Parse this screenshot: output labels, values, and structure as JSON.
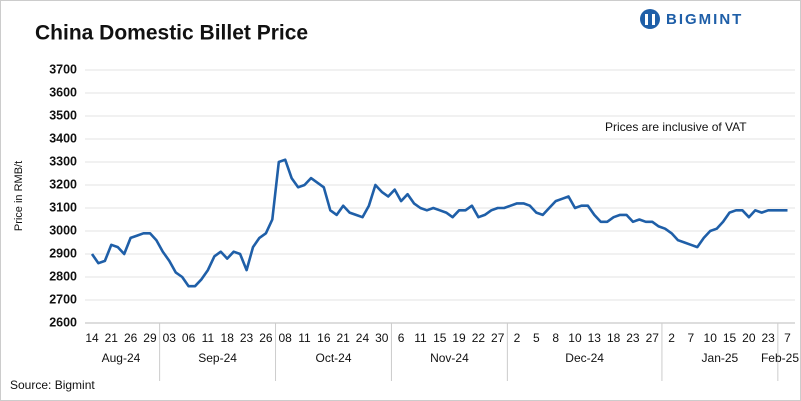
{
  "chart_data": {
    "type": "line",
    "title": "China Domestic Billet Price",
    "brand": "BIGMINT",
    "ylabel": "Price in RMB/t",
    "annotation": "Prices are inclusive of VAT",
    "source": "Source: Bigmint",
    "months": [
      "Aug-24",
      "Sep-24",
      "Oct-24",
      "Nov-24",
      "Dec-24",
      "Jan-25",
      "Feb-25"
    ],
    "categories": [
      "14",
      null,
      null,
      "21",
      null,
      null,
      "26",
      null,
      null,
      "29",
      null,
      null,
      "03",
      null,
      null,
      "06",
      null,
      null,
      "11",
      null,
      null,
      "18",
      null,
      null,
      "23",
      null,
      null,
      "26",
      null,
      null,
      "08",
      null,
      null,
      "11",
      null,
      null,
      "16",
      null,
      null,
      "21",
      null,
      null,
      "24",
      null,
      null,
      "30",
      null,
      null,
      "6",
      null,
      null,
      "11",
      null,
      null,
      "15",
      null,
      null,
      "19",
      null,
      null,
      "22",
      null,
      null,
      "27",
      null,
      null,
      "2",
      null,
      null,
      "5",
      null,
      null,
      "8",
      null,
      null,
      "10",
      null,
      null,
      "13",
      null,
      null,
      "18",
      null,
      null,
      "23",
      null,
      null,
      "27",
      null,
      null,
      "2",
      null,
      null,
      "7",
      null,
      null,
      "10",
      null,
      null,
      "15",
      null,
      null,
      "20",
      null,
      null,
      "23",
      null,
      null,
      "7"
    ],
    "series": [
      {
        "name": "Billet",
        "color": "#1f5fa8",
        "values": [
          2900,
          2860,
          2870,
          2940,
          2930,
          2900,
          2970,
          2980,
          2990,
          2990,
          2960,
          2910,
          2870,
          2820,
          2800,
          2760,
          2760,
          2790,
          2830,
          2890,
          2910,
          2880,
          2910,
          2900,
          2830,
          2930,
          2970,
          2990,
          3050,
          3300,
          3310,
          3230,
          3190,
          3200,
          3230,
          3210,
          3190,
          3090,
          3070,
          3110,
          3080,
          3070,
          3060,
          3110,
          3200,
          3170,
          3150,
          3180,
          3130,
          3160,
          3120,
          3100,
          3090,
          3100,
          3090,
          3080,
          3060,
          3090,
          3090,
          3110,
          3060,
          3070,
          3090,
          3100,
          3100,
          3110,
          3120,
          3120,
          3110,
          3080,
          3070,
          3100,
          3130,
          3140,
          3150,
          3100,
          3110,
          3110,
          3070,
          3040,
          3040,
          3060,
          3070,
          3070,
          3040,
          3050,
          3040,
          3040,
          3020,
          3010,
          2990,
          2960,
          2950,
          2940,
          2930,
          2970,
          3000,
          3010,
          3040,
          3080,
          3090,
          3090,
          3060,
          3090,
          3080,
          3090,
          3090,
          3090,
          3090
        ]
      }
    ],
    "ylim": [
      2600,
      3700
    ],
    "yticks": [
      2600,
      2700,
      2800,
      2900,
      3000,
      3100,
      3200,
      3300,
      3400,
      3500,
      3600,
      3700
    ],
    "grid": true
  }
}
